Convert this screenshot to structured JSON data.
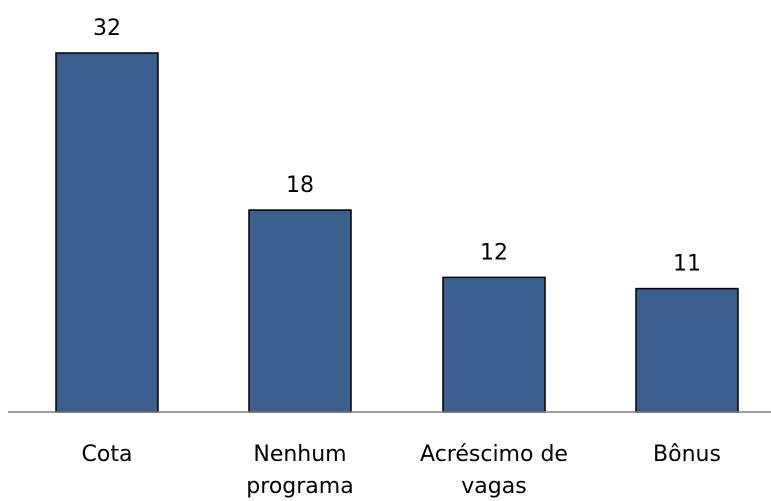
{
  "chart_data": {
    "type": "bar",
    "categories": [
      "Cota",
      "Nenhum programa",
      "Acréscimo de vagas",
      "Bônus"
    ],
    "category_lines": [
      [
        "Cota"
      ],
      [
        "Nenhum",
        "programa"
      ],
      [
        "Acréscimo de",
        "vagas"
      ],
      [
        "Bônus"
      ]
    ],
    "values": [
      32,
      18,
      12,
      11
    ],
    "value_labels": [
      "32",
      "18",
      "12",
      "11"
    ],
    "title": "",
    "xlabel": "",
    "ylabel": "",
    "ylim": [
      0,
      32
    ],
    "grid": false,
    "legend": "none",
    "bar_color": "#3a5f8f",
    "border_color": "#000000"
  }
}
